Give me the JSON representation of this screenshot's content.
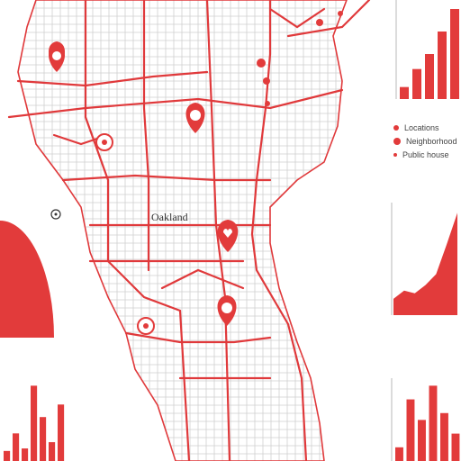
{
  "map": {
    "city_label": "Oakland",
    "colors": {
      "road": "#e0393b",
      "street": "#c9c9c9",
      "land": "#ffffff",
      "water": "#f7f7f7",
      "accent": "#e23b3b"
    }
  },
  "legend": {
    "items": [
      {
        "text": "Locations",
        "marker": "dot"
      },
      {
        "text": "Neighborhood",
        "marker": "dot"
      },
      {
        "text": "Public house",
        "marker": "small-dot"
      }
    ]
  },
  "charts": {
    "chart_data": [
      {
        "type": "bar",
        "title": "",
        "values": [
          8,
          20,
          30,
          45,
          60
        ]
      },
      {
        "type": "area",
        "title": "",
        "x": [
          0,
          1,
          2,
          3,
          4,
          5,
          6
        ],
        "values": [
          12,
          18,
          16,
          22,
          30,
          52,
          75
        ]
      },
      {
        "type": "bar",
        "title": "",
        "values": [
          10,
          45,
          30,
          55,
          35,
          20
        ]
      },
      {
        "type": "bar",
        "title": "",
        "values": [
          8,
          22,
          10,
          60,
          35,
          15,
          45
        ]
      },
      {
        "type": "area",
        "title": "",
        "values": [
          70
        ]
      }
    ]
  }
}
